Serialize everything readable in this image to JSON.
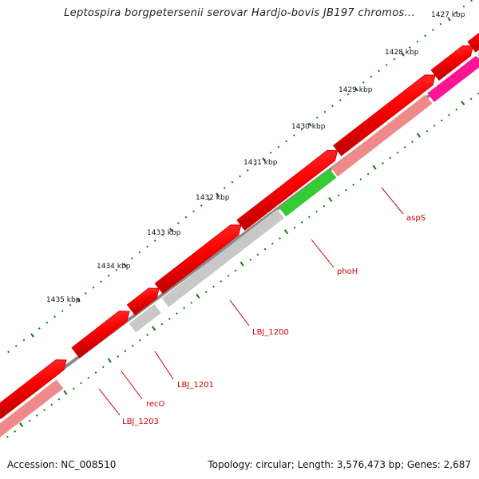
{
  "title": "Leptospira borgpetersenii serovar Hardjo-bovis JB197 chromos...",
  "footer": {
    "accession": "Accession: NC_008510",
    "summary": "Topology: circular; Length: 3,576,473 bp; Genes: 2,687"
  },
  "scale": {
    "ticks": [
      {
        "kbp": 1427,
        "label": "1427 kbp"
      },
      {
        "kbp": 1428,
        "label": "1428 kbp"
      },
      {
        "kbp": 1429,
        "label": "1429 kbp"
      },
      {
        "kbp": 1430,
        "label": "1430 kbp"
      },
      {
        "kbp": 1431,
        "label": "1431 kbp"
      },
      {
        "kbp": 1432,
        "label": "1432 kbp"
      },
      {
        "kbp": 1433,
        "label": "1433 kbp"
      },
      {
        "kbp": 1434,
        "label": "1434 kbp"
      },
      {
        "kbp": 1435,
        "label": "1435 kbp"
      }
    ]
  },
  "gene_labels": [
    {
      "name": "aspS"
    },
    {
      "name": "phoH"
    },
    {
      "name": "LBJ_1200"
    },
    {
      "name": "LBJ_1201"
    },
    {
      "name": "recO"
    },
    {
      "name": "LBJ_1203"
    }
  ],
  "colors": {
    "backbone": "#8a8a8a",
    "forward_gene": "#ff0000",
    "cog_unknown": "#c8c8c8",
    "cog_pink": "#f08a8a",
    "cog_magenta": "#ff1493",
    "cog_green": "#33cc33",
    "tick": "#117711",
    "label": "#cc0000"
  }
}
